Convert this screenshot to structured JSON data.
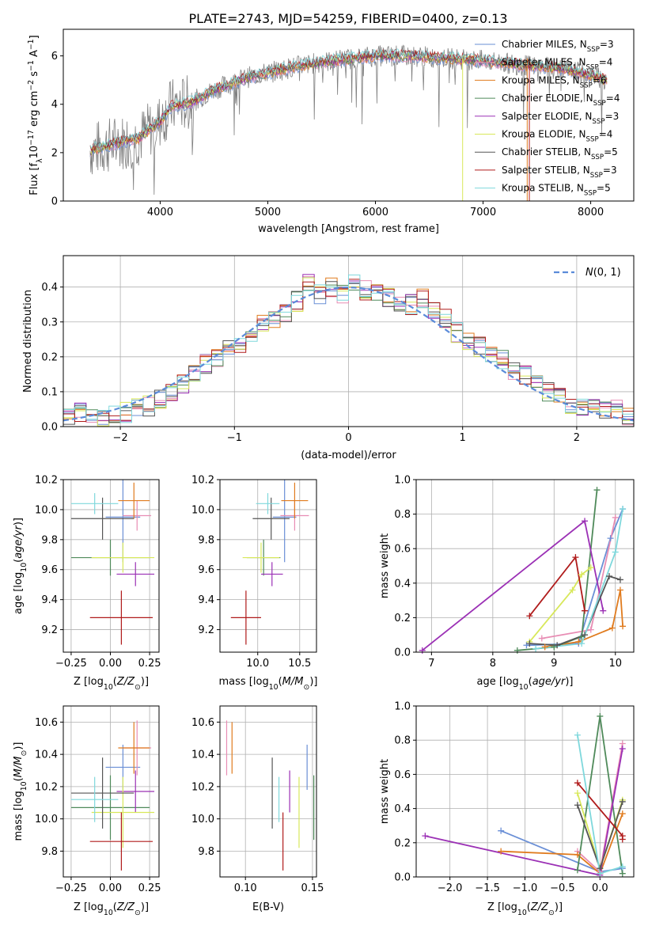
{
  "figure_title": "PLATE=2743, MJD=54259, FIBERID=0400, z=0.13",
  "colors": {
    "Chabrier MILES": "#6a8fd6",
    "Salpeter MILES": "#e88db4",
    "Kroupa MILES": "#e07b1e",
    "Chabrier ELODIE": "#4f8a5a",
    "Salpeter ELODIE": "#9b30b5",
    "Kroupa ELODIE": "#d8e85a",
    "Chabrier STELIB": "#555555",
    "Salpeter STELIB": "#b01b1b",
    "Kroupa STELIB": "#7fd8dc"
  },
  "chart_data": [
    {
      "id": "spectrum",
      "type": "line",
      "xlabel": "wavelength [Angstrom, rest frame]",
      "ylabel": "Flux [f_λ 10^-17 erg cm^-2 s^-1 A^-1]",
      "xlim": [
        3100,
        8400
      ],
      "ylim": [
        0,
        7.1
      ],
      "xticks": [
        4000,
        5000,
        6000,
        7000,
        8000
      ],
      "yticks": [
        0,
        2,
        4,
        6
      ],
      "grid": false,
      "legend_position": "top-right",
      "legend": [
        {
          "label": "Chabrier MILES, N",
          "sub": "SSP",
          "tail": "=3",
          "key": "Chabrier MILES"
        },
        {
          "label": "Salpeter MILES, N",
          "sub": "SSP",
          "tail": "=4",
          "key": "Salpeter MILES"
        },
        {
          "label": "Kroupa MILES, N",
          "sub": "SSP",
          "tail": "=6",
          "key": "Kroupa MILES"
        },
        {
          "label": "Chabrier ELODIE, N",
          "sub": "SSP",
          "tail": "=4",
          "key": "Chabrier ELODIE"
        },
        {
          "label": "Salpeter ELODIE, N",
          "sub": "SSP",
          "tail": "=3",
          "key": "Salpeter ELODIE"
        },
        {
          "label": "Kroupa ELODIE, N",
          "sub": "SSP",
          "tail": "=4",
          "key": "Kroupa ELODIE"
        },
        {
          "label": "Chabrier STELIB, N",
          "sub": "SSP",
          "tail": "=5",
          "key": "Chabrier STELIB"
        },
        {
          "label": "Salpeter STELIB, N",
          "sub": "SSP",
          "tail": "=3",
          "key": "Salpeter STELIB"
        },
        {
          "label": "Kroupa STELIB, N",
          "sub": "SSP",
          "tail": "=5",
          "key": "Kroupa STELIB"
        }
      ],
      "continuum": {
        "x": [
          3350,
          3600,
          3800,
          4000,
          4100,
          4300,
          4500,
          4800,
          5000,
          5300,
          5600,
          6000,
          6300,
          6700,
          7000,
          7400,
          7700,
          8000,
          8150
        ],
        "y": [
          2.1,
          2.4,
          2.6,
          3.3,
          3.9,
          4.1,
          4.6,
          5.1,
          5.3,
          5.6,
          5.8,
          6.0,
          6.0,
          5.9,
          5.8,
          5.6,
          5.5,
          5.2,
          5.0
        ]
      }
    },
    {
      "id": "residuals",
      "type": "bar",
      "xlabel": "(data-model)/error",
      "ylabel": "Normed distribution",
      "xlim": [
        -2.5,
        2.5
      ],
      "ylim": [
        0,
        0.49
      ],
      "xticks": [
        -2,
        -1,
        0,
        1,
        2
      ],
      "yticks": [
        0.0,
        0.1,
        0.2,
        0.3,
        0.4
      ],
      "grid": true,
      "legend_position": "top-right",
      "legend_label": "N(0,1)",
      "bins": [
        -2.5,
        -2.4,
        -2.3,
        -2.2,
        -2.1,
        -2.0,
        -1.9,
        -1.8,
        -1.7,
        -1.6,
        -1.5,
        -1.4,
        -1.3,
        -1.2,
        -1.1,
        -1.0,
        -0.9,
        -0.8,
        -0.7,
        -0.6,
        -0.5,
        -0.4,
        -0.3,
        -0.2,
        -0.1,
        0.0,
        0.1,
        0.2,
        0.3,
        0.4,
        0.5,
        0.6,
        0.7,
        0.8,
        0.9,
        1.0,
        1.1,
        1.2,
        1.3,
        1.4,
        1.5,
        1.6,
        1.7,
        1.8,
        1.9,
        2.0,
        2.1,
        2.2,
        2.3,
        2.4,
        2.5
      ],
      "hist_mean": [
        0.03,
        0.04,
        0.03,
        0.03,
        0.03,
        0.04,
        0.05,
        0.06,
        0.08,
        0.1,
        0.12,
        0.15,
        0.18,
        0.2,
        0.22,
        0.24,
        0.27,
        0.29,
        0.31,
        0.33,
        0.36,
        0.41,
        0.38,
        0.4,
        0.38,
        0.41,
        0.39,
        0.39,
        0.37,
        0.36,
        0.35,
        0.37,
        0.34,
        0.31,
        0.27,
        0.25,
        0.23,
        0.21,
        0.19,
        0.16,
        0.15,
        0.12,
        0.1,
        0.08,
        0.06,
        0.05,
        0.05,
        0.05,
        0.05,
        0.03
      ]
    },
    {
      "id": "age_vs_Z",
      "type": "scatter",
      "xlabel": "Z [log10(Z/Z⊙)]",
      "ylabel": "age  [log10(age/yr)]",
      "xlim": [
        -0.3,
        0.31
      ],
      "ylim": [
        9.05,
        10.2
      ],
      "xticks": [
        -0.25,
        0.0,
        0.25
      ],
      "yticks": [
        9.2,
        9.4,
        9.6,
        9.8,
        10.0,
        10.2
      ],
      "grid": true
    },
    {
      "id": "age_vs_mass",
      "type": "scatter",
      "xlabel": "mass [log10(M/M⊙)]",
      "ylabel": "",
      "xlim": [
        9.55,
        10.7
      ],
      "ylim": [
        9.05,
        10.2
      ],
      "xticks": [
        10.0,
        10.5
      ],
      "yticks": [
        9.2,
        9.4,
        9.6,
        9.8,
        10.0,
        10.2
      ],
      "grid": true
    },
    {
      "id": "weight_vs_age",
      "type": "line",
      "xlabel": "age  [log10(age/yr)]",
      "ylabel": "mass weight",
      "xlim": [
        6.75,
        10.3
      ],
      "ylim": [
        0,
        1.0
      ],
      "xticks": [
        7,
        8,
        9,
        10
      ],
      "yticks": [
        0.0,
        0.2,
        0.4,
        0.6,
        0.8,
        1.0
      ],
      "grid": true
    },
    {
      "id": "mass_vs_Z",
      "type": "scatter",
      "xlabel": "Z [log10(Z/Z⊙)]",
      "ylabel": "mass [log10(M/M⊙)]",
      "xlim": [
        -0.3,
        0.31
      ],
      "ylim": [
        9.64,
        10.7
      ],
      "xticks": [
        -0.25,
        0.0,
        0.25
      ],
      "yticks": [
        9.8,
        10.0,
        10.2,
        10.4,
        10.6
      ],
      "grid": true
    },
    {
      "id": "mass_vs_ebv",
      "type": "scatter",
      "xlabel": "E(B-V)",
      "ylabel": "",
      "xlim": [
        0.081,
        0.153
      ],
      "ylim": [
        9.64,
        10.7
      ],
      "xticks": [
        0.1,
        0.15
      ],
      "yticks": [
        9.8,
        10.0,
        10.2,
        10.4,
        10.6
      ],
      "grid": true
    },
    {
      "id": "weight_vs_Z",
      "type": "line",
      "xlabel": "Z [log10(Z/Z⊙)]",
      "ylabel": "mass weight",
      "xlim": [
        -2.45,
        0.45
      ],
      "ylim": [
        0,
        1.0
      ],
      "xticks": [
        -2.0,
        -1.5,
        -1.0,
        -0.5,
        0.0
      ],
      "yticks": [
        0.0,
        0.2,
        0.4,
        0.6,
        0.8,
        1.0
      ],
      "grid": true
    }
  ],
  "models": [
    {
      "key": "Chabrier MILES",
      "Z": [
        0.08,
        0.11
      ],
      "age": [
        9.95,
        0.3
      ],
      "mass": [
        10.32,
        0.14
      ],
      "ebv": 0.146,
      "sfh_age": [
        [
          8.55,
          0.04
        ],
        [
          9.4,
          0.05
        ],
        [
          9.92,
          0.66
        ],
        [
          10.12,
          0.83
        ]
      ],
      "sfh_Z": [
        [
          -1.32,
          0.27
        ],
        [
          0.0,
          0.03
        ],
        [
          0.3,
          0.05
        ]
      ]
    },
    {
      "key": "Salpeter MILES",
      "Z": [
        0.17,
        0.09
      ],
      "age": [
        9.96,
        0.1
      ],
      "mass": [
        10.44,
        0.17
      ],
      "ebv": 0.086,
      "sfh_age": [
        [
          8.8,
          0.08
        ],
        [
          9.6,
          0.13
        ],
        [
          10.0,
          0.78
        ]
      ],
      "sfh_Z": [
        [
          -0.3,
          0.15
        ],
        [
          0.0,
          0.03
        ],
        [
          0.3,
          0.78
        ]
      ]
    },
    {
      "key": "Kroupa MILES",
      "Z": [
        0.15,
        0.1
      ],
      "age": [
        10.06,
        0.12
      ],
      "mass": [
        10.44,
        0.16
      ],
      "ebv": 0.09,
      "sfh_age": [
        [
          8.85,
          0.03
        ],
        [
          9.4,
          0.06
        ],
        [
          9.95,
          0.14
        ],
        [
          10.08,
          0.36
        ],
        [
          10.12,
          0.15
        ]
      ],
      "sfh_Z": [
        [
          -1.32,
          0.15
        ],
        [
          -0.3,
          0.13
        ],
        [
          0.0,
          0.02
        ],
        [
          0.3,
          0.37
        ]
      ]
    },
    {
      "key": "Chabrier ELODIE",
      "Z": [
        0.0,
        0.25
      ],
      "age": [
        9.68,
        0.12
      ],
      "mass": [
        10.07,
        0.2
      ],
      "ebv": 0.151,
      "sfh_age": [
        [
          8.4,
          0.01
        ],
        [
          9.0,
          0.03
        ],
        [
          9.45,
          0.09
        ],
        [
          9.7,
          0.94
        ]
      ],
      "sfh_Z": [
        [
          -0.3,
          0.04
        ],
        [
          0.0,
          0.94
        ],
        [
          0.3,
          0.02
        ]
      ]
    },
    {
      "key": "Salpeter ELODIE",
      "Z": [
        0.16,
        0.12
      ],
      "age": [
        9.57,
        0.08
      ],
      "mass": [
        10.17,
        0.13
      ],
      "ebv": 0.133,
      "sfh_age": [
        [
          6.85,
          0.01
        ],
        [
          9.5,
          0.76
        ],
        [
          9.8,
          0.24
        ]
      ],
      "sfh_Z": [
        [
          -2.33,
          0.24
        ],
        [
          0.0,
          0.01
        ],
        [
          0.3,
          0.75
        ]
      ]
    },
    {
      "key": "Kroupa ELODIE",
      "Z": [
        0.08,
        0.2
      ],
      "age": [
        9.68,
        0.1
      ],
      "mass": [
        10.04,
        0.22
      ],
      "ebv": 0.14,
      "sfh_age": [
        [
          8.6,
          0.06
        ],
        [
          9.3,
          0.36
        ],
        [
          9.45,
          0.45
        ],
        [
          9.6,
          0.49
        ]
      ],
      "sfh_Z": [
        [
          -0.3,
          0.49
        ],
        [
          0.0,
          0.05
        ],
        [
          0.3,
          0.45
        ]
      ]
    },
    {
      "key": "Chabrier STELIB",
      "Z": [
        -0.05,
        0.2
      ],
      "age": [
        9.94,
        0.14
      ],
      "mass": [
        10.16,
        0.22
      ],
      "ebv": 0.12,
      "sfh_age": [
        [
          8.6,
          0.05
        ],
        [
          9.05,
          0.04
        ],
        [
          9.5,
          0.1
        ],
        [
          9.9,
          0.44
        ],
        [
          10.08,
          0.42
        ]
      ],
      "sfh_Z": [
        [
          -0.3,
          0.42
        ],
        [
          0.0,
          0.05
        ],
        [
          0.3,
          0.44
        ]
      ]
    },
    {
      "key": "Salpeter STELIB",
      "Z": [
        0.07,
        0.2
      ],
      "age": [
        9.28,
        0.18
      ],
      "mass": [
        9.86,
        0.18
      ],
      "ebv": 0.128,
      "sfh_age": [
        [
          8.6,
          0.21
        ],
        [
          9.35,
          0.55
        ],
        [
          9.5,
          0.24
        ]
      ],
      "sfh_Z": [
        [
          -0.3,
          0.55
        ],
        [
          0.3,
          0.24
        ],
        [
          0.3,
          0.22
        ]
      ]
    },
    {
      "key": "Kroupa STELIB",
      "Z": [
        -0.1,
        0.15
      ],
      "age": [
        10.04,
        0.07
      ],
      "mass": [
        10.12,
        0.14
      ],
      "ebv": 0.125,
      "sfh_age": [
        [
          8.7,
          0.02
        ],
        [
          9.45,
          0.05
        ],
        [
          10.0,
          0.58
        ],
        [
          10.12,
          0.83
        ]
      ],
      "sfh_Z": [
        [
          -0.3,
          0.83
        ],
        [
          0.0,
          0.02
        ],
        [
          0.3,
          0.06
        ]
      ]
    }
  ]
}
